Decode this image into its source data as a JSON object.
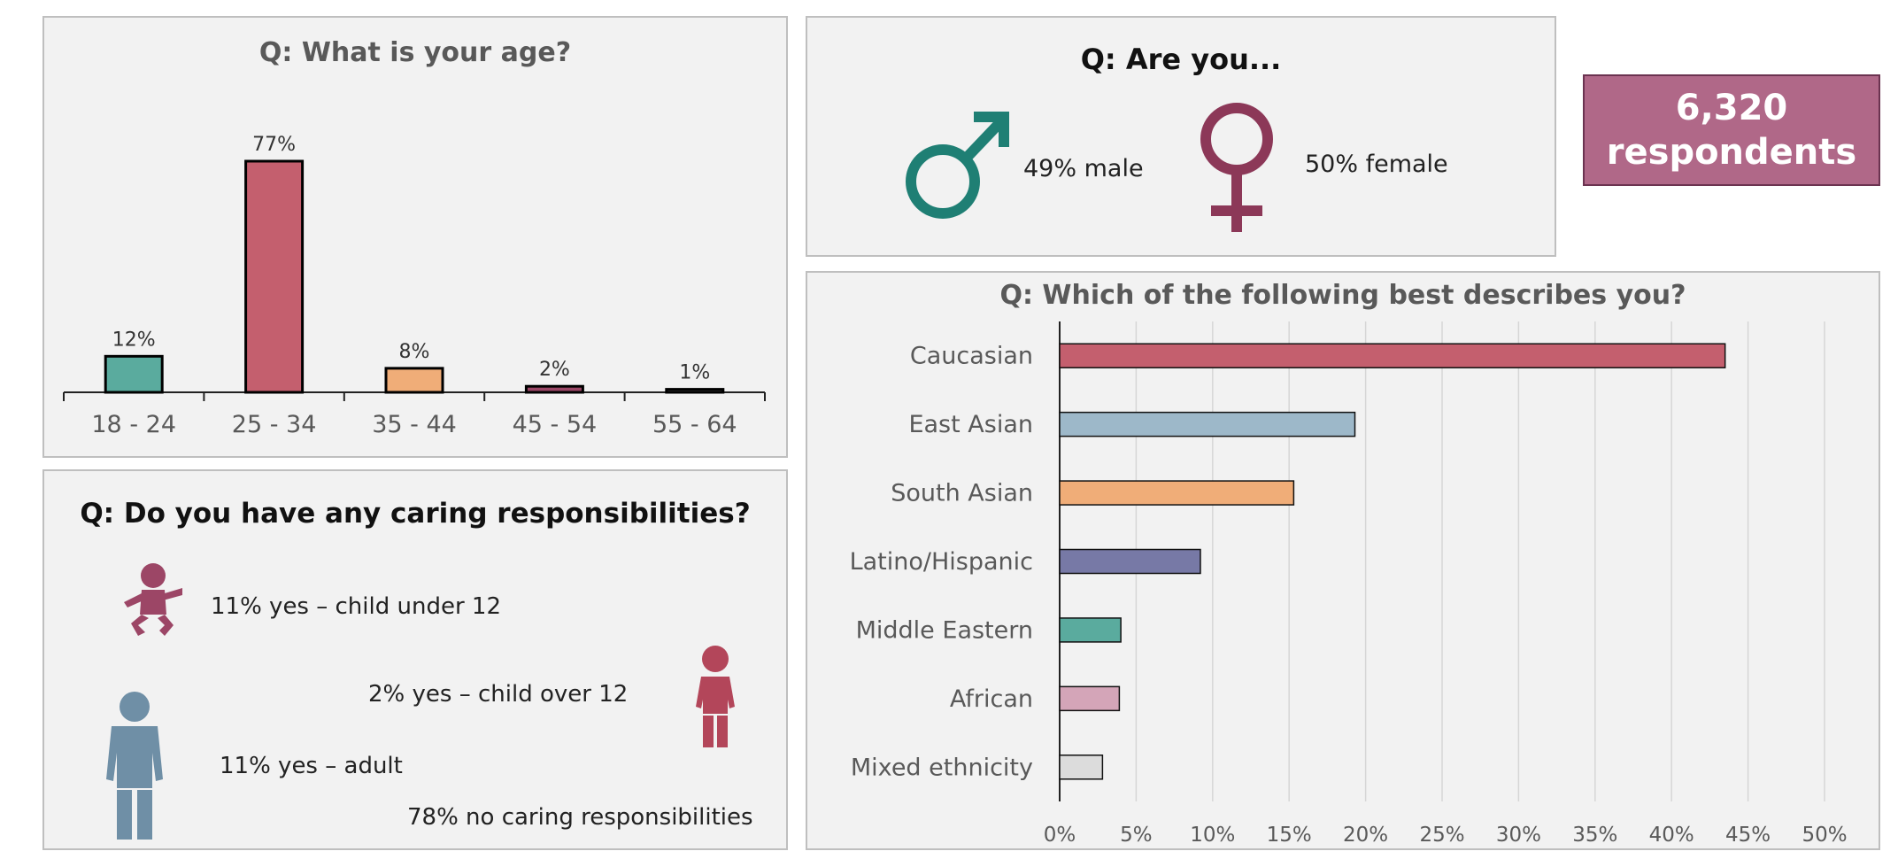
{
  "respondents": {
    "count": "6,320",
    "label": "respondents"
  },
  "colors": {
    "panel_bg": "#f2f2f2",
    "teal": "#5aab9e",
    "rose": "#c45f6e",
    "orange": "#f0ad78",
    "mauve": "#9b4666",
    "slate": "#6f8fa6",
    "light_blue": "#9db8c9",
    "indigo": "#7779a6",
    "pink": "#d4a5b8",
    "grey": "#dcdcdc",
    "male_icon": "#1f7f74",
    "female_icon": "#8c3858",
    "care_icon": "#9c4666",
    "care_icon_red": "#b3465a"
  },
  "gender": {
    "title": "Q: Are you...",
    "male": {
      "icon": "male-symbol-icon",
      "text": "49% male"
    },
    "female": {
      "icon": "female-symbol-icon",
      "text": "50% female"
    }
  },
  "caring": {
    "title": "Q: Do you have any caring responsibilities?",
    "items": [
      {
        "icon": "baby-icon",
        "text": "11% yes – child under 12"
      },
      {
        "icon": "child-icon",
        "text": "2% yes – child over 12"
      },
      {
        "icon": "adult-icon",
        "text": "11% yes – adult"
      },
      {
        "icon": "",
        "text": "78% no caring responsibilities"
      }
    ]
  },
  "chart_data": [
    {
      "type": "bar",
      "title": "Q: What is your age?",
      "categories": [
        "18 - 24",
        "25 - 34",
        "35 - 44",
        "45 - 54",
        "55 - 64"
      ],
      "values": [
        12,
        77,
        8,
        2,
        1
      ],
      "data_labels": [
        "12%",
        "77%",
        "8%",
        "2%",
        "1%"
      ],
      "colors": [
        "#5aab9e",
        "#c45f6e",
        "#f0ad78",
        "#9b4666",
        "#555555"
      ],
      "xlabel": "",
      "ylabel": "",
      "ylim": [
        0,
        77
      ],
      "grid": false,
      "legend": "none"
    },
    {
      "type": "bar",
      "orientation": "horizontal",
      "title": "Q: Which of the following best describes you?",
      "categories": [
        "Caucasian",
        "East Asian",
        "South Asian",
        "Latino/Hispanic",
        "Middle Eastern",
        "African",
        "Mixed ethnicity"
      ],
      "values": [
        43.5,
        19.3,
        15.3,
        9.2,
        4.0,
        3.9,
        2.8
      ],
      "colors": [
        "#c45f6e",
        "#9db8c9",
        "#f0ad78",
        "#7779a6",
        "#5aab9e",
        "#d4a5b8",
        "#dcdcdc"
      ],
      "xlim": [
        0,
        50
      ],
      "xticks": [
        "0%",
        "5%",
        "10%",
        "15%",
        "20%",
        "25%",
        "30%",
        "35%",
        "40%",
        "45%",
        "50%"
      ],
      "xlabel": "",
      "ylabel": "",
      "grid": true,
      "legend": "none"
    }
  ]
}
